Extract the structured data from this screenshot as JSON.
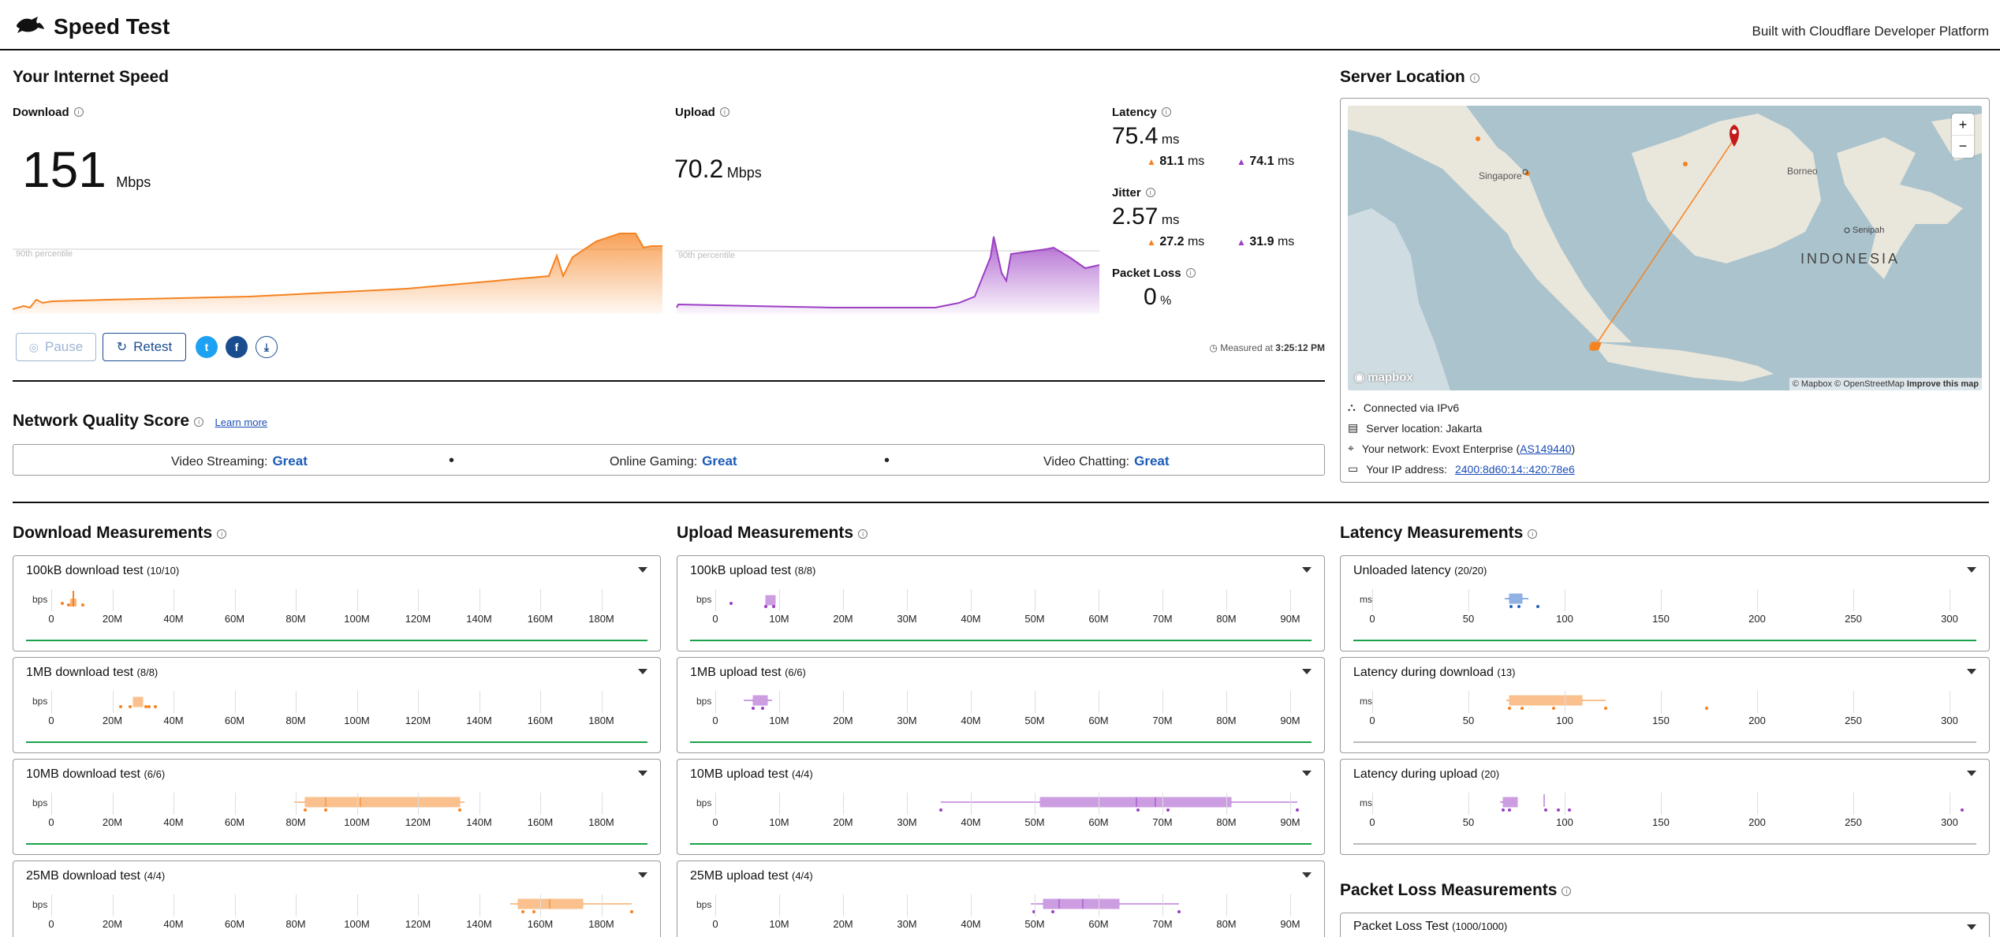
{
  "header": {
    "title": "Speed Test",
    "built_with": "Built with Cloudflare Developer Platform"
  },
  "speed": {
    "heading": "Your Internet Speed",
    "download": {
      "label": "Download",
      "value": "151",
      "unit": "Mbps",
      "percentile_label": "90th percentile"
    },
    "upload": {
      "label": "Upload",
      "value": "70.2",
      "unit": "Mbps",
      "percentile_label": "90th percentile"
    },
    "latency": {
      "label": "Latency",
      "value": "75.4",
      "unit": "ms",
      "down": "81.1",
      "up": "74.1",
      "sub_unit": "ms"
    },
    "jitter": {
      "label": "Jitter",
      "value": "2.57",
      "unit": "ms",
      "down": "27.2",
      "up": "31.9",
      "sub_unit": "ms"
    },
    "packet_loss": {
      "label": "Packet Loss",
      "value": "0",
      "unit": "%"
    },
    "buttons": {
      "pause": "Pause",
      "retest": "Retest"
    },
    "measured_prefix": "Measured at",
    "measured_time": "3:25:12 PM"
  },
  "nq": {
    "heading": "Network Quality Score",
    "learn_more": "Learn more",
    "items": [
      {
        "label": "Video Streaming:",
        "value": "Great"
      },
      {
        "label": "Online Gaming:",
        "value": "Great"
      },
      {
        "label": "Video Chatting:",
        "value": "Great"
      }
    ]
  },
  "server": {
    "heading": "Server Location",
    "map_labels": {
      "singapore": "Singapore",
      "borneo": "Borneo",
      "indonesia": "INDONESIA",
      "senipah": "Senipah"
    },
    "map_credit_logo": "mapbox",
    "map_attribution": "© Mapbox © OpenStreetMap",
    "map_improve": "Improve this map",
    "zoom_in": "+",
    "zoom_out": "−",
    "connected": "Connected via IPv6",
    "location": "Server location: Jakarta",
    "network_prefix": "Your network: Evoxt Enterprise (",
    "network_as": "AS149440",
    "network_suffix": ")",
    "ip_prefix": "Your IP address:",
    "ip": "2400:8d60:14::420:78e6"
  },
  "download_measurements": {
    "heading": "Download Measurements",
    "unit": "bps",
    "ticks": [
      "0",
      "20M",
      "40M",
      "60M",
      "80M",
      "100M",
      "120M",
      "140M",
      "160M",
      "180M"
    ],
    "tests": [
      {
        "name": "100kB download test",
        "count": "(10/10)"
      },
      {
        "name": "1MB download test",
        "count": "(8/8)"
      },
      {
        "name": "10MB download test",
        "count": "(6/6)"
      },
      {
        "name": "25MB download test",
        "count": "(4/4)"
      }
    ]
  },
  "upload_measurements": {
    "heading": "Upload Measurements",
    "unit": "bps",
    "ticks": [
      "0",
      "10M",
      "20M",
      "30M",
      "40M",
      "50M",
      "60M",
      "70M",
      "80M",
      "90M"
    ],
    "tests": [
      {
        "name": "100kB upload test",
        "count": "(8/8)"
      },
      {
        "name": "1MB upload test",
        "count": "(6/6)"
      },
      {
        "name": "10MB upload test",
        "count": "(4/4)"
      },
      {
        "name": "25MB upload test",
        "count": "(4/4)"
      }
    ]
  },
  "latency_measurements": {
    "heading": "Latency Measurements",
    "unit": "ms",
    "ticks": [
      "0",
      "50",
      "100",
      "150",
      "200",
      "250",
      "300"
    ],
    "tests": [
      {
        "name": "Unloaded latency",
        "count": "(20/20)"
      },
      {
        "name": "Latency during download",
        "count": "(13)"
      },
      {
        "name": "Latency during upload",
        "count": "(20)"
      }
    ]
  },
  "packet_loss_measurements": {
    "heading": "Packet Loss Measurements",
    "test": {
      "name": "Packet Loss Test",
      "count": "(1000/1000)"
    }
  },
  "colors": {
    "download": "#f6821f",
    "upload": "#9b3fc4",
    "latency": "#2563c9",
    "green": "#1aa34a",
    "link": "#1a5bb8"
  }
}
